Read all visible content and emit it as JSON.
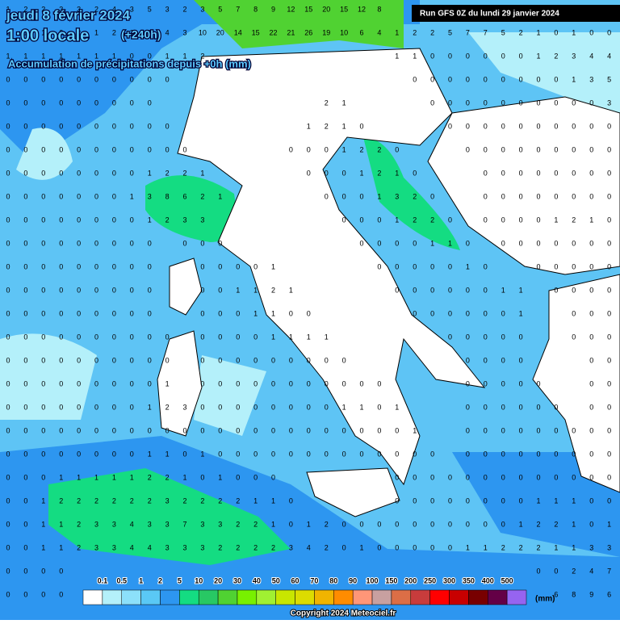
{
  "header": {
    "date": "jeudi 8 février 2024",
    "time": "1:00 locale",
    "lead": "(+240h)",
    "subtitle": "Accumulation de précipitations depuis +0h (mm)",
    "run": "Run GFS 0Z du lundi 29 janvier 2024"
  },
  "map": {
    "grid": [
      [
        1,
        2,
        2,
        3,
        3,
        2,
        4,
        3,
        5,
        3,
        2,
        3,
        5,
        7,
        8,
        9,
        12,
        15,
        20,
        15,
        12,
        8,
        null,
        null,
        null,
        null,
        null,
        null,
        null,
        null,
        null,
        null,
        null,
        null,
        null
      ],
      [
        2,
        1,
        1,
        2,
        2,
        1,
        2,
        3,
        3,
        4,
        3,
        10,
        20,
        14,
        15,
        22,
        21,
        26,
        19,
        10,
        6,
        4,
        1,
        2,
        2,
        5,
        7,
        7,
        5,
        2,
        1,
        0,
        1,
        0,
        0
      ],
      [
        1,
        1,
        1,
        1,
        1,
        1,
        1,
        0,
        0,
        1,
        1,
        2,
        null,
        null,
        null,
        null,
        null,
        null,
        null,
        null,
        null,
        null,
        1,
        1,
        0,
        0,
        0,
        0,
        0,
        0,
        1,
        2,
        3,
        4,
        4
      ],
      [
        0,
        0,
        0,
        0,
        0,
        0,
        0,
        0,
        0,
        0,
        null,
        null,
        null,
        null,
        null,
        null,
        null,
        null,
        null,
        null,
        null,
        null,
        null,
        0,
        0,
        0,
        0,
        0,
        0,
        0,
        0,
        0,
        1,
        3,
        5
      ],
      [
        0,
        0,
        0,
        0,
        0,
        0,
        0,
        0,
        0,
        null,
        null,
        null,
        null,
        null,
        null,
        null,
        null,
        null,
        2,
        1,
        null,
        null,
        null,
        null,
        0,
        0,
        0,
        0,
        0,
        0,
        0,
        0,
        0,
        0,
        3
      ],
      [
        0,
        0,
        0,
        0,
        0,
        0,
        0,
        0,
        0,
        0,
        null,
        null,
        null,
        null,
        null,
        null,
        null,
        1,
        2,
        1,
        0,
        null,
        null,
        null,
        null,
        0,
        0,
        0,
        0,
        0,
        0,
        0,
        0,
        0,
        0
      ],
      [
        0,
        0,
        0,
        0,
        0,
        0,
        0,
        0,
        0,
        0,
        0,
        null,
        null,
        null,
        null,
        null,
        0,
        0,
        0,
        1,
        2,
        2,
        0,
        null,
        null,
        null,
        0,
        0,
        0,
        0,
        0,
        0,
        0,
        0,
        0
      ],
      [
        0,
        0,
        0,
        0,
        0,
        0,
        0,
        0,
        1,
        2,
        2,
        1,
        null,
        null,
        null,
        null,
        null,
        0,
        0,
        0,
        1,
        2,
        1,
        0,
        null,
        null,
        null,
        0,
        0,
        0,
        0,
        0,
        0,
        0,
        0
      ],
      [
        0,
        0,
        0,
        0,
        0,
        0,
        0,
        1,
        3,
        8,
        6,
        2,
        1,
        null,
        null,
        null,
        null,
        null,
        0,
        0,
        0,
        1,
        3,
        2,
        0,
        null,
        null,
        0,
        0,
        0,
        0,
        0,
        0,
        0,
        0
      ],
      [
        0,
        0,
        0,
        0,
        0,
        0,
        0,
        0,
        1,
        2,
        3,
        3,
        null,
        null,
        null,
        null,
        null,
        null,
        null,
        0,
        0,
        0,
        1,
        2,
        2,
        0,
        null,
        0,
        0,
        0,
        0,
        1,
        2,
        1,
        0
      ],
      [
        0,
        0,
        0,
        0,
        0,
        0,
        0,
        0,
        0,
        null,
        0,
        0,
        0,
        null,
        null,
        null,
        null,
        null,
        null,
        null,
        0,
        0,
        0,
        0,
        1,
        1,
        0,
        null,
        0,
        0,
        0,
        0,
        0,
        0,
        0
      ],
      [
        0,
        0,
        0,
        0,
        0,
        0,
        0,
        0,
        0,
        null,
        null,
        0,
        0,
        0,
        0,
        1,
        null,
        null,
        null,
        null,
        null,
        0,
        0,
        0,
        0,
        0,
        1,
        0,
        null,
        null,
        0,
        0,
        0,
        0,
        0
      ],
      [
        0,
        0,
        0,
        0,
        0,
        0,
        0,
        0,
        0,
        null,
        null,
        0,
        0,
        1,
        1,
        2,
        1,
        null,
        null,
        null,
        null,
        null,
        0,
        0,
        0,
        0,
        0,
        0,
        1,
        1,
        null,
        0,
        0,
        0,
        0
      ],
      [
        0,
        0,
        0,
        0,
        0,
        0,
        0,
        0,
        0,
        null,
        null,
        0,
        0,
        0,
        1,
        1,
        0,
        0,
        null,
        null,
        null,
        null,
        null,
        0,
        0,
        0,
        0,
        0,
        0,
        1,
        null,
        null,
        0,
        0,
        0
      ],
      [
        0,
        0,
        0,
        0,
        0,
        0,
        0,
        0,
        0,
        0,
        null,
        0,
        0,
        0,
        0,
        1,
        1,
        1,
        1,
        null,
        null,
        null,
        null,
        null,
        null,
        0,
        0,
        0,
        0,
        0,
        null,
        null,
        0,
        0,
        0
      ],
      [
        0,
        0,
        0,
        0,
        0,
        0,
        0,
        0,
        0,
        0,
        null,
        0,
        0,
        0,
        0,
        0,
        0,
        0,
        0,
        0,
        null,
        null,
        null,
        null,
        null,
        null,
        0,
        0,
        0,
        0,
        null,
        null,
        null,
        0,
        0
      ],
      [
        0,
        0,
        0,
        0,
        0,
        0,
        0,
        0,
        0,
        1,
        null,
        0,
        0,
        0,
        0,
        0,
        0,
        0,
        0,
        0,
        0,
        0,
        null,
        null,
        null,
        null,
        0,
        0,
        0,
        0,
        0,
        null,
        null,
        0,
        0
      ],
      [
        0,
        0,
        0,
        0,
        0,
        0,
        0,
        0,
        1,
        2,
        3,
        0,
        0,
        0,
        0,
        0,
        0,
        0,
        0,
        1,
        1,
        0,
        1,
        null,
        null,
        null,
        0,
        0,
        0,
        0,
        0,
        0,
        null,
        0,
        0
      ],
      [
        0,
        0,
        0,
        0,
        0,
        0,
        0,
        0,
        0,
        0,
        0,
        0,
        0,
        0,
        0,
        0,
        0,
        0,
        0,
        0,
        0,
        0,
        0,
        1,
        null,
        null,
        0,
        0,
        0,
        0,
        0,
        0,
        0,
        0,
        0
      ],
      [
        0,
        0,
        0,
        0,
        0,
        0,
        0,
        0,
        1,
        1,
        0,
        1,
        0,
        0,
        0,
        0,
        0,
        0,
        0,
        0,
        0,
        0,
        0,
        0,
        0,
        null,
        0,
        0,
        0,
        0,
        0,
        0,
        0,
        0,
        0
      ],
      [
        0,
        0,
        0,
        1,
        1,
        1,
        1,
        1,
        2,
        2,
        1,
        0,
        1,
        0,
        0,
        0,
        null,
        null,
        null,
        null,
        null,
        null,
        0,
        0,
        0,
        0,
        0,
        0,
        0,
        0,
        0,
        0,
        0,
        0,
        0
      ],
      [
        0,
        0,
        1,
        2,
        2,
        2,
        2,
        2,
        2,
        3,
        2,
        2,
        2,
        2,
        1,
        1,
        0,
        null,
        null,
        null,
        null,
        null,
        0,
        0,
        0,
        0,
        0,
        0,
        0,
        0,
        1,
        1,
        1,
        0,
        0
      ],
      [
        0,
        0,
        1,
        1,
        2,
        3,
        3,
        4,
        3,
        3,
        7,
        3,
        3,
        2,
        2,
        1,
        0,
        1,
        2,
        0,
        0,
        0,
        0,
        0,
        0,
        0,
        0,
        0,
        0,
        1,
        2,
        2,
        1,
        0,
        1
      ],
      [
        0,
        0,
        1,
        1,
        2,
        3,
        3,
        4,
        4,
        3,
        3,
        3,
        2,
        2,
        2,
        2,
        3,
        4,
        2,
        0,
        1,
        0,
        0,
        0,
        0,
        0,
        1,
        1,
        2,
        2,
        2,
        1,
        1,
        3,
        3
      ],
      [
        0,
        0,
        0,
        0,
        null,
        null,
        null,
        null,
        null,
        null,
        null,
        null,
        null,
        null,
        null,
        null,
        null,
        null,
        null,
        null,
        null,
        null,
        null,
        null,
        null,
        null,
        null,
        null,
        null,
        null,
        0,
        0,
        2,
        4,
        7
      ],
      [
        0,
        0,
        0,
        0,
        null,
        null,
        null,
        null,
        null,
        null,
        null,
        null,
        null,
        null,
        null,
        null,
        null,
        null,
        null,
        null,
        null,
        null,
        null,
        null,
        null,
        null,
        null,
        null,
        null,
        null,
        null,
        6,
        8,
        9,
        6
      ]
    ]
  },
  "legend": {
    "labels": [
      0.1,
      0.5,
      1,
      2,
      5,
      10,
      20,
      30,
      40,
      50,
      60,
      70,
      80,
      90,
      100,
      150,
      200,
      250,
      300,
      350,
      400,
      500
    ],
    "colors": [
      "#ffffff",
      "#b4f0fa",
      "#8ce0fa",
      "#5ac8f5",
      "#2d96f0",
      "#14dc82",
      "#28c864",
      "#50d232",
      "#78f000",
      "#a0f032",
      "#c8e600",
      "#dcdc00",
      "#f0b400",
      "#ff8c00",
      "#ff9678",
      "#c8a0a0",
      "#dc6e46",
      "#c83c3c",
      "#ff0000",
      "#c80000",
      "#780000",
      "#640046",
      "#9664f0"
    ],
    "unit": "(mm)"
  },
  "footer": {
    "copyright": "Copyright 2024 Meteociel.fr"
  }
}
